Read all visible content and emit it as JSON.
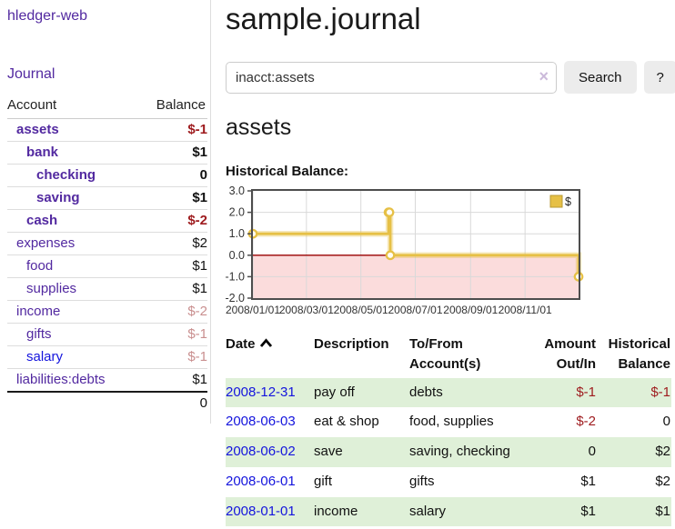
{
  "sidebar": {
    "app_title": "hledger-web",
    "journal_label": "Journal",
    "table": {
      "account_header": "Account",
      "balance_header": "Balance",
      "total": "0"
    },
    "accounts": [
      {
        "name": "assets",
        "indent": 1,
        "emphasized": true,
        "negative": true,
        "balance": "$-1"
      },
      {
        "name": "bank",
        "indent": 2,
        "emphasized": true,
        "negative": false,
        "balance": "$1"
      },
      {
        "name": "checking",
        "indent": 3,
        "emphasized": true,
        "negative": false,
        "balance": "0"
      },
      {
        "name": "saving",
        "indent": 3,
        "emphasized": true,
        "negative": false,
        "balance": "$1"
      },
      {
        "name": "cash",
        "indent": 2,
        "emphasized": true,
        "negative": true,
        "balance": "$-2"
      },
      {
        "name": "expenses",
        "indent": 1,
        "emphasized": false,
        "negative": false,
        "balance": "$2"
      },
      {
        "name": "food",
        "indent": 2,
        "emphasized": false,
        "negative": false,
        "balance": "$1"
      },
      {
        "name": "supplies",
        "indent": 2,
        "emphasized": false,
        "negative": false,
        "balance": "$1"
      },
      {
        "name": "income",
        "indent": 1,
        "emphasized": false,
        "negative": true,
        "balance": "$-2"
      },
      {
        "name": "gifts",
        "indent": 2,
        "emphasized": false,
        "negative": true,
        "balance": "$-1"
      },
      {
        "name": "salary",
        "indent": 2,
        "emphasized": false,
        "negative": true,
        "balance": "$-1",
        "link_blue": true
      },
      {
        "name": "liabilities:debts",
        "indent": 1,
        "emphasized": false,
        "negative": false,
        "balance": "$1"
      }
    ]
  },
  "main": {
    "title": "sample.journal",
    "search": {
      "value": "inacct:assets",
      "clear_icon": "×",
      "button_label": "Search",
      "help_label": "?"
    },
    "account_heading": "assets",
    "chart_label": "Historical Balance:"
  },
  "transactions": {
    "headers": {
      "date": "Date",
      "description": "Description",
      "accounts": "To/From Account(s)",
      "amount": "Amount Out/In",
      "balance": "Historical Balance"
    },
    "sort": {
      "column": "date",
      "direction": "ascending"
    },
    "rows": [
      {
        "date": "2008-12-31",
        "description": "pay off",
        "accounts": "debts",
        "amount": "$-1",
        "amount_negative": true,
        "balance": "$-1",
        "balance_negative": true
      },
      {
        "date": "2008-06-03",
        "description": "eat & shop",
        "accounts": "food, supplies",
        "amount": "$-2",
        "amount_negative": true,
        "balance": "0",
        "balance_negative": false
      },
      {
        "date": "2008-06-02",
        "description": "save",
        "accounts": "saving, checking",
        "amount": "0",
        "amount_negative": false,
        "balance": "$2",
        "balance_negative": false
      },
      {
        "date": "2008-06-01",
        "description": "gift",
        "accounts": "gifts",
        "amount": "$1",
        "amount_negative": false,
        "balance": "$2",
        "balance_negative": false
      },
      {
        "date": "2008-01-01",
        "description": "income",
        "accounts": "salary",
        "amount": "$1",
        "amount_negative": false,
        "balance": "$1",
        "balance_negative": false
      }
    ]
  },
  "chart_data": {
    "type": "line",
    "step": true,
    "title": "Historical Balance:",
    "legend": [
      {
        "label": "$",
        "color": "#e6c046"
      }
    ],
    "legend_position": "top-right",
    "x_range": [
      "2008-01-01",
      "2008-12-31"
    ],
    "ylim": [
      -2,
      3
    ],
    "yticks": [
      {
        "label": "3.0",
        "value": 3
      },
      {
        "label": "2.0",
        "value": 2
      },
      {
        "label": "1.0",
        "value": 1
      },
      {
        "label": "0.0",
        "value": 0
      },
      {
        "label": "-1.0",
        "value": -1
      },
      {
        "label": "-2.0",
        "value": -2
      }
    ],
    "xticks": [
      {
        "label": "2008/01/01",
        "date": "2008-01-01"
      },
      {
        "label": "2008/03/01",
        "date": "2008-03-01"
      },
      {
        "label": "2008/05/01",
        "date": "2008-05-01"
      },
      {
        "label": "2008/07/01",
        "date": "2008-07-01"
      },
      {
        "label": "2008/09/01",
        "date": "2008-09-01"
      },
      {
        "label": "2008/11/01",
        "date": "2008-11-01"
      }
    ],
    "series": [
      {
        "name": "$",
        "color": "#e6c046",
        "points": [
          [
            "2008-01-01",
            1
          ],
          [
            "2008-06-01",
            2
          ],
          [
            "2008-06-02",
            2
          ],
          [
            "2008-06-03",
            0
          ],
          [
            "2008-12-31",
            -1
          ]
        ]
      }
    ],
    "grid": true,
    "negative_region_color": "#fbdcdc",
    "zero_line_color": "#990000"
  },
  "colors": {
    "link_purple": "#5229a0",
    "link_blue": "#1414dd",
    "negative_strong": "#9e1b1e",
    "negative_soft": "#c98f8f",
    "row_green": "#dff0d8",
    "chart_gold": "#e6c046",
    "chart_negative_fill": "#fbdcdc",
    "chart_zero_line": "#990000"
  }
}
